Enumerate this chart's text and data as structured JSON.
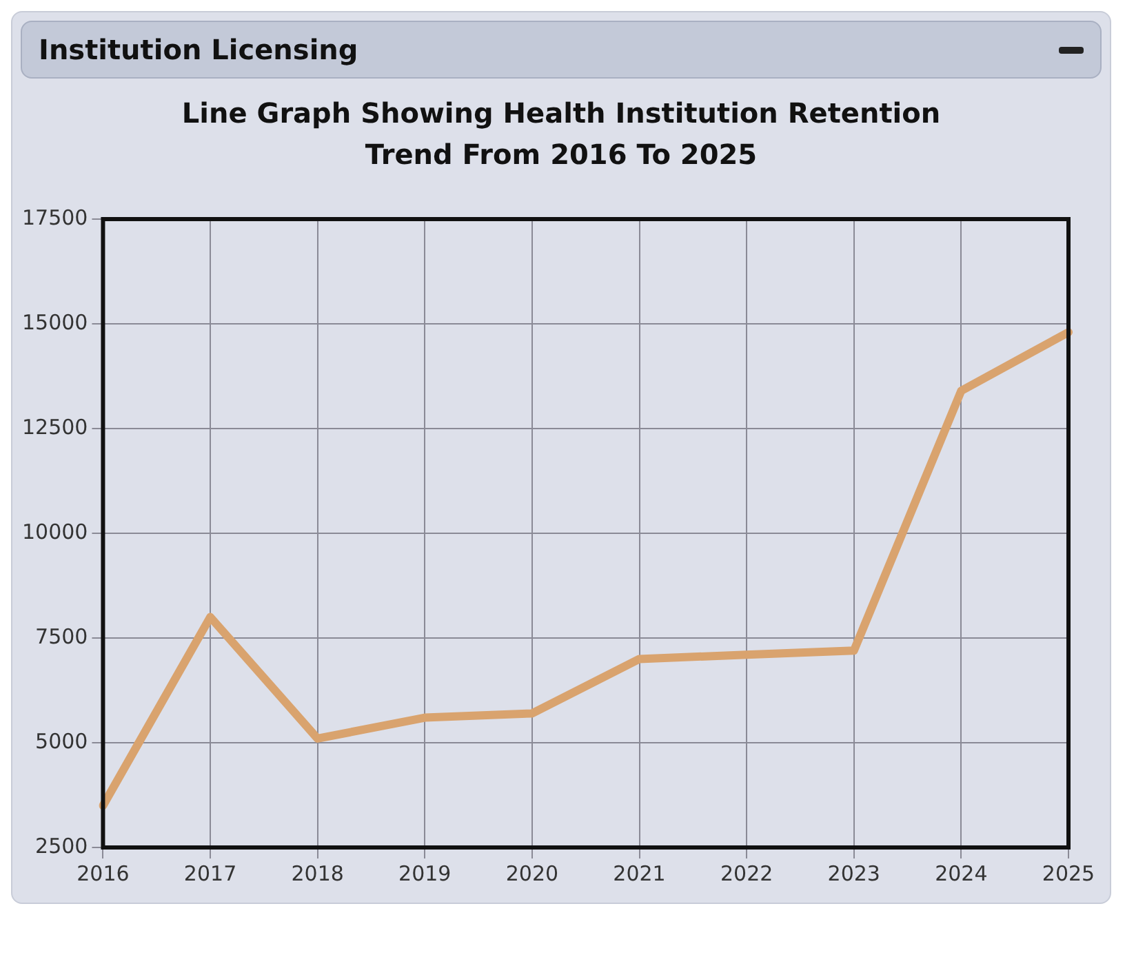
{
  "chart_data": {
    "type": "line",
    "title": "Line Graph Showing Health Institution Retention Trend From 2016 To 2025",
    "annotations": [
      "Institution Licensing"
    ],
    "categories": [
      "2016",
      "2017",
      "2018",
      "2019",
      "2020",
      "2021",
      "2022",
      "2023",
      "2024",
      "2025"
    ],
    "series": [
      {
        "color": "#d9a36e",
        "values": [
          3500,
          8000,
          5100,
          5600,
          5700,
          7000,
          7100,
          7200,
          13400,
          14800
        ]
      }
    ],
    "ylim": [
      2500,
      17500
    ],
    "yticks": [
      2500,
      5000,
      7500,
      10000,
      12500,
      15000,
      17500
    ],
    "grid": true,
    "legend": false,
    "marker": "none",
    "line_style": "solid"
  }
}
